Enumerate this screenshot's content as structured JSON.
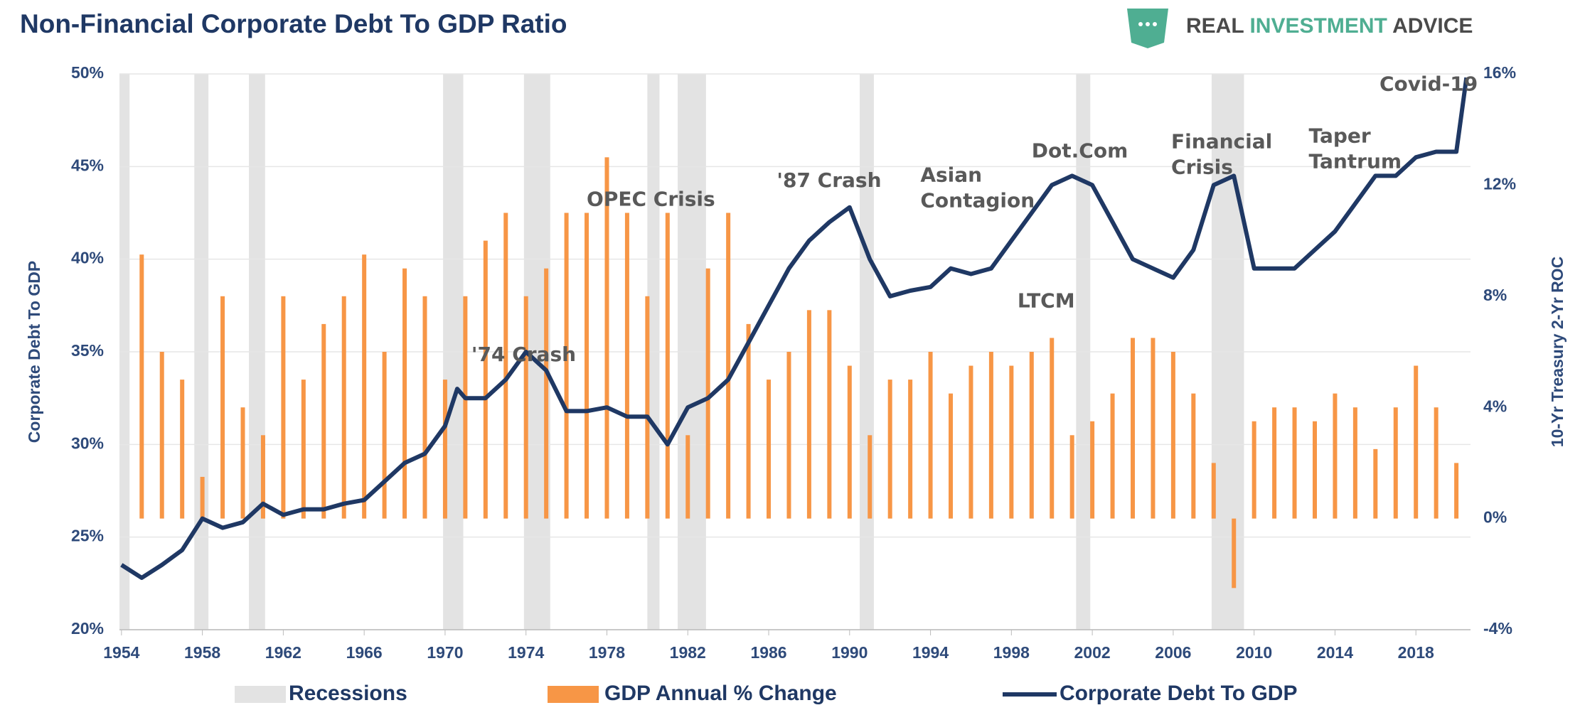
{
  "chart_data": {
    "type": "bar",
    "title": "Non-Financial Corporate Debt To GDP Ratio",
    "brand": [
      "REAL",
      "INVESTMENT",
      "ADVICE"
    ],
    "y_label": "Corporate Debt To GDP",
    "y2_label": "10-Yr Treasury 2-Yr ROC",
    "xlim": [
      1953.9,
      2020.7
    ],
    "xticks": [
      1954,
      1958,
      1962,
      1966,
      1970,
      1974,
      1978,
      1982,
      1986,
      1990,
      1994,
      1998,
      2002,
      2006,
      2010,
      2014,
      2018
    ],
    "ylim": [
      20,
      50
    ],
    "yticks": [
      {
        "value": 20,
        "label": "20%"
      },
      {
        "value": 25,
        "label": "25%"
      },
      {
        "value": 30,
        "label": "30%"
      },
      {
        "value": 35,
        "label": "35%"
      },
      {
        "value": 40,
        "label": "40%"
      },
      {
        "value": 45,
        "label": "45%"
      },
      {
        "value": 50,
        "label": "50%"
      }
    ],
    "y2lim": [
      -4,
      16
    ],
    "y2ticks": [
      {
        "value": -4,
        "label": "-4%"
      },
      {
        "value": 0,
        "label": "0%"
      },
      {
        "value": 4,
        "label": "4%"
      },
      {
        "value": 8,
        "label": "8%"
      },
      {
        "value": 12,
        "label": "12%"
      },
      {
        "value": 16,
        "label": "16%"
      }
    ],
    "grid": true,
    "recessions": {
      "name": "Recessions",
      "color": "#e3e3e3",
      "spans": [
        [
          1953.9,
          1954.4
        ],
        [
          1957.6,
          1958.3
        ],
        [
          1960.3,
          1961.1
        ],
        [
          1969.9,
          1970.9
        ],
        [
          1973.9,
          1975.2
        ],
        [
          1980.0,
          1980.6
        ],
        [
          1981.5,
          1982.9
        ],
        [
          1990.5,
          1991.2
        ],
        [
          2001.2,
          2001.9
        ],
        [
          2007.9,
          2009.5
        ]
      ]
    },
    "series": [
      {
        "name": "GDP Annual % Change",
        "type": "bar",
        "axis": "y2",
        "color": "#f79646",
        "x": [
          1955,
          1956,
          1957,
          1958,
          1959,
          1960,
          1961,
          1962,
          1963,
          1964,
          1965,
          1966,
          1967,
          1968,
          1969,
          1970,
          1971,
          1972,
          1973,
          1974,
          1975,
          1976,
          1977,
          1978,
          1979,
          1980,
          1981,
          1982,
          1983,
          1984,
          1985,
          1986,
          1987,
          1988,
          1989,
          1990,
          1991,
          1992,
          1993,
          1994,
          1995,
          1996,
          1997,
          1998,
          1999,
          2000,
          2001,
          2002,
          2003,
          2004,
          2005,
          2006,
          2007,
          2008,
          2009,
          2010,
          2011,
          2012,
          2013,
          2014,
          2015,
          2016,
          2017,
          2018,
          2019,
          2020
        ],
        "values": [
          9.5,
          6,
          5,
          1.5,
          8,
          4,
          3,
          8,
          5,
          7,
          8,
          9.5,
          6,
          9,
          8,
          5,
          8,
          10,
          11,
          8,
          9,
          11,
          11,
          13,
          11,
          8,
          11,
          3,
          9,
          11,
          7,
          5,
          6,
          7.5,
          7.5,
          5.5,
          3,
          5,
          5,
          6,
          4.5,
          5.5,
          6,
          5.5,
          6,
          6.5,
          3,
          3.5,
          4.5,
          6.5,
          6.5,
          6,
          4.5,
          2,
          -2.5,
          3.5,
          4,
          4,
          3.5,
          4.5,
          4,
          2.5,
          4,
          5.5,
          4,
          2
        ]
      },
      {
        "name": "Corporate Debt To GDP",
        "type": "line",
        "color": "#1f3864",
        "x": [
          1954,
          1955,
          1956,
          1957,
          1958,
          1959,
          1960,
          1961,
          1962,
          1963,
          1964,
          1965,
          1966,
          1967,
          1968,
          1969,
          1970,
          1970.6,
          1971,
          1972,
          1973,
          1974,
          1975,
          1976,
          1977,
          1978,
          1979,
          1980,
          1981,
          1982,
          1983,
          1984,
          1985,
          1986,
          1987,
          1988,
          1989,
          1990,
          1991,
          1992,
          1993,
          1994,
          1995,
          1996,
          1997,
          1998,
          1999,
          2000,
          2001,
          2002,
          2003,
          2004,
          2005,
          2006,
          2007,
          2008,
          2009,
          2010,
          2011,
          2012,
          2013,
          2014,
          2015,
          2016,
          2017,
          2018,
          2019,
          2020,
          2020.5
        ],
        "values": [
          23.5,
          22.8,
          23.5,
          24.3,
          26,
          25.5,
          25.8,
          26.8,
          26.2,
          26.5,
          26.5,
          26.8,
          27,
          28,
          29,
          29.5,
          31,
          33,
          32.5,
          32.5,
          33.5,
          35,
          34,
          31.8,
          31.8,
          32,
          31.5,
          31.5,
          30,
          32,
          32.5,
          33.5,
          35.5,
          37.5,
          39.5,
          41,
          42,
          42.8,
          40,
          38,
          38.3,
          38.5,
          39.5,
          39.2,
          39.5,
          41,
          42.5,
          44,
          44.5,
          44,
          42,
          40,
          39.5,
          39,
          40.5,
          44,
          44.5,
          39.5,
          39.5,
          39.5,
          40.5,
          41.5,
          43,
          44.5,
          44.5,
          45.5,
          45.8,
          45.8,
          49.8
        ]
      }
    ],
    "annotations": [
      {
        "lines": [
          "'74 Crash"
        ],
        "x": 1971.3,
        "y": 34.8
      },
      {
        "lines": [
          "OPEC Crisis"
        ],
        "x": 1977.0,
        "y": 43.2
      },
      {
        "lines": [
          "'87 Crash"
        ],
        "x": 1986.4,
        "y": 44.2
      },
      {
        "lines": [
          "Asian",
          "Contagion"
        ],
        "x": 1993.5,
        "y": 44.5
      },
      {
        "lines": [
          "Dot.Com"
        ],
        "x": 1999.0,
        "y": 45.8
      },
      {
        "lines": [
          "LTCM"
        ],
        "x": 1998.3,
        "y": 37.7
      },
      {
        "lines": [
          "Financial",
          "Crisis"
        ],
        "x": 2005.9,
        "y": 46.3
      },
      {
        "lines": [
          "Taper",
          "Tantrum"
        ],
        "x": 2012.7,
        "y": 46.6
      },
      {
        "lines": [
          "Covid-19"
        ],
        "x": 2016.2,
        "y": 49.4
      }
    ]
  }
}
